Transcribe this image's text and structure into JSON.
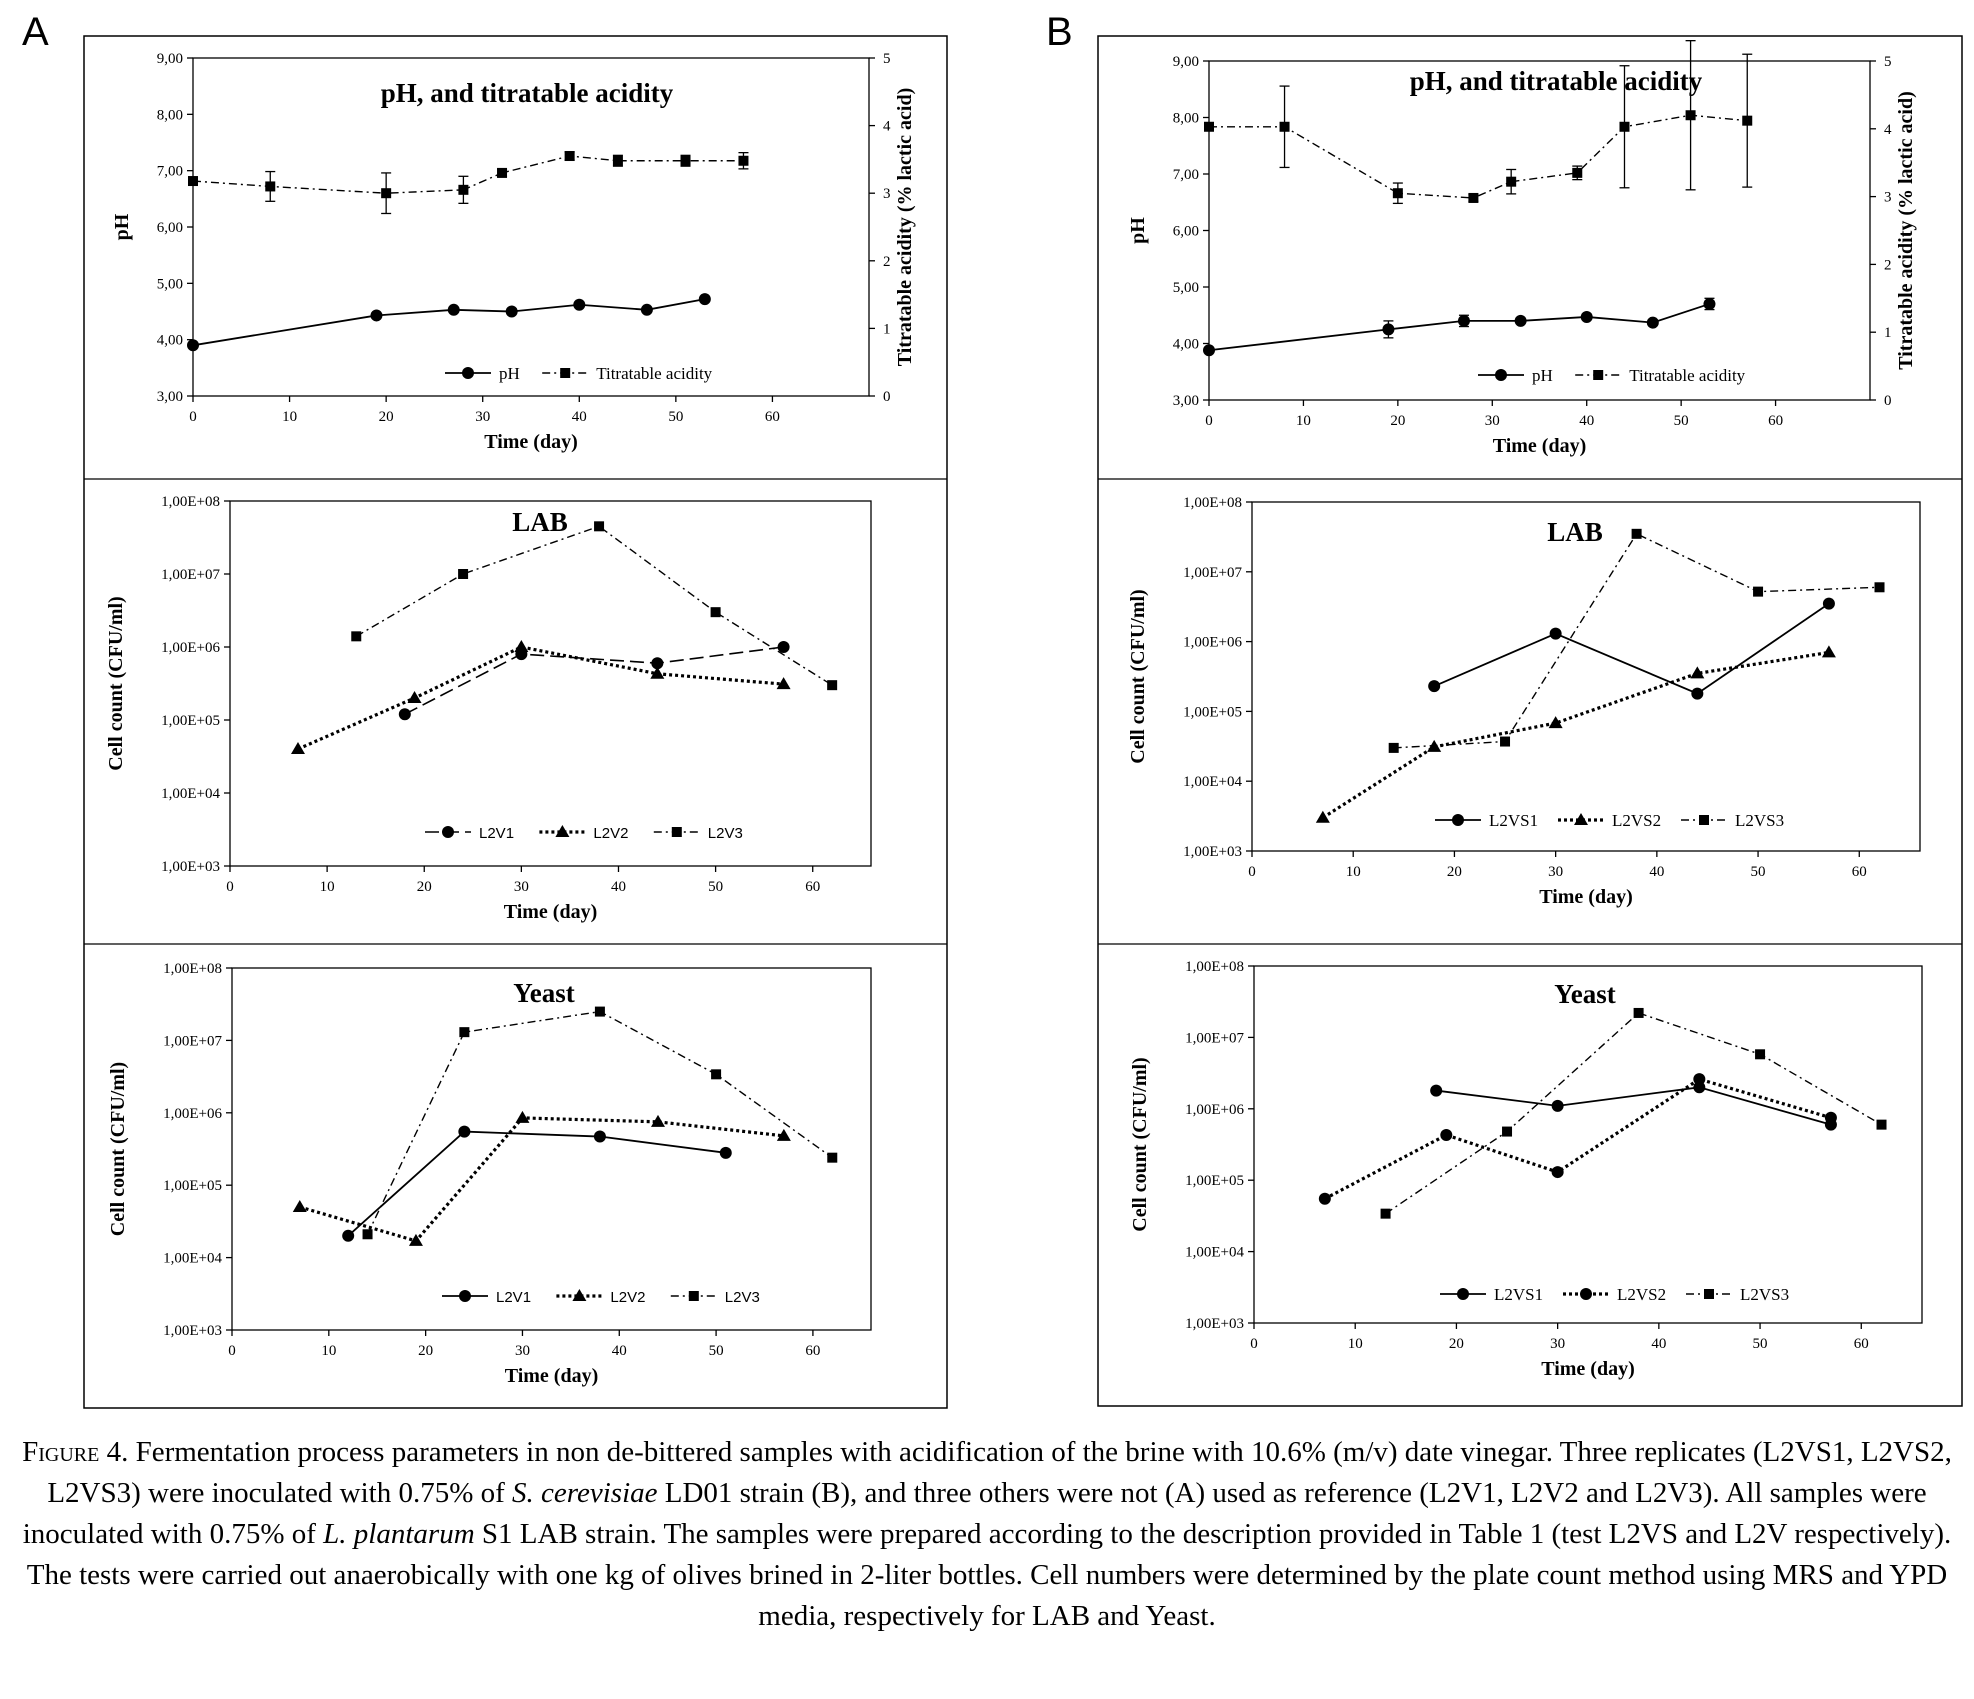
{
  "panels": [
    {
      "letter": "A",
      "charts": [
        0,
        1,
        2
      ]
    },
    {
      "letter": "B",
      "charts": [
        3,
        4,
        5
      ]
    }
  ],
  "caption": {
    "fig_label": "Figure 4.",
    "t1": " Fermentation process parameters in non de-bittered samples with acidification of the brine with 10.6% (m/v) date vinegar. Three replicates (L2VS1, L2VS2, L2VS3) were inoculated with 0.75% of ",
    "i1": "S. cerevisiae",
    "t2": " LD01 strain (B), and three others were not (A) used as reference (L2V1, L2V2 and L2V3). All samples were inoculated with 0.75% of ",
    "i2": "L. plantarum",
    "t3": " S1 LAB strain. The samples were prepared according to the description provided in Table 1 (test L2VS and L2V respectively). The tests were carried out anaerobically with one kg of olives brined in 2-liter bottles. Cell numbers were determined by the plate count method using MRS and YPD media, respectively for LAB and Yeast."
  },
  "chart_data": [
    {
      "type": "line",
      "panel": "A",
      "title": "pH, and titratable acidity",
      "xlabel": "Time (day)",
      "ylabel": "pH",
      "y2label": "Titratable acidity (% lactic acid)",
      "xlim": [
        0,
        70
      ],
      "xticks": [
        0,
        10,
        20,
        30,
        40,
        50,
        60
      ],
      "ylim": [
        3,
        9
      ],
      "yticks": [
        "3,00",
        "4,00",
        "5,00",
        "6,00",
        "7,00",
        "8,00",
        "9,00"
      ],
      "y2lim": [
        0,
        5
      ],
      "y2ticks": [
        "0",
        "1",
        "2",
        "3",
        "4",
        "5"
      ],
      "legend": "bottom-center",
      "series": [
        {
          "name": "pH",
          "axis": "left",
          "marker": "circle",
          "dash": "solid",
          "x": [
            0,
            19,
            27,
            33,
            40,
            47,
            53
          ],
          "y": [
            3.9,
            4.43,
            4.53,
            4.5,
            4.62,
            4.53,
            4.72
          ],
          "err": [
            0,
            0,
            0,
            0,
            0,
            0,
            0
          ]
        },
        {
          "name": "Titratable acidity",
          "axis": "right",
          "marker": "square",
          "dash": "dashdot",
          "x": [
            0,
            8,
            20,
            28,
            32,
            39,
            44,
            51,
            57
          ],
          "y": [
            3.18,
            3.1,
            3.0,
            3.05,
            3.3,
            3.55,
            3.48,
            3.48,
            3.48
          ],
          "err": [
            0,
            0.22,
            0.3,
            0.2,
            0.05,
            0.06,
            0.08,
            0.08,
            0.12
          ]
        }
      ]
    },
    {
      "type": "line",
      "panel": "A",
      "title": "LAB",
      "xlabel": "Time (day)",
      "ylabel": "Cell count (CFU/ml)",
      "log": true,
      "xlim": [
        0,
        66
      ],
      "xticks": [
        0,
        10,
        20,
        30,
        40,
        50,
        60
      ],
      "ylim": [
        1000,
        100000000
      ],
      "yticks": [
        "1,00E+03",
        "1,00E+04",
        "1,00E+05",
        "1,00E+06",
        "1,00E+07",
        "1,00E+08"
      ],
      "legend": "bottom-center",
      "series": [
        {
          "name": "L2V1",
          "marker": "circle",
          "dash": "longdash",
          "x": [
            18,
            30,
            44,
            57
          ],
          "y": [
            120000,
            800000,
            600000,
            1000000
          ]
        },
        {
          "name": "L2V2",
          "marker": "triangle",
          "dash": "dotted",
          "x": [
            7,
            19,
            30,
            44,
            57
          ],
          "y": [
            40000,
            200000,
            1000000,
            430000,
            310000
          ]
        },
        {
          "name": "L2V3",
          "marker": "square",
          "dash": "dashdot",
          "x": [
            13,
            24,
            38,
            50,
            62
          ],
          "y": [
            1400000,
            10000000,
            45000000,
            3000000,
            300000
          ]
        }
      ]
    },
    {
      "type": "line",
      "panel": "A",
      "title": "Yeast",
      "xlabel": "Time (day)",
      "ylabel": "Cell count (CFU/ml)",
      "log": true,
      "xlim": [
        0,
        66
      ],
      "xticks": [
        0,
        10,
        20,
        30,
        40,
        50,
        60
      ],
      "ylim": [
        1000,
        100000000
      ],
      "yticks": [
        "1,00E+03",
        "1,00E+04",
        "1,00E+05",
        "1,00E+06",
        "1,00E+07",
        "1,00E+08"
      ],
      "legend": "bottom-center",
      "series": [
        {
          "name": "L2V1",
          "marker": "circle",
          "dash": "solid",
          "x": [
            12,
            24,
            38,
            51
          ],
          "y": [
            20000,
            550000,
            470000,
            280000
          ]
        },
        {
          "name": "L2V2",
          "marker": "triangle",
          "dash": "dotted",
          "x": [
            7,
            19,
            30,
            44,
            57
          ],
          "y": [
            50000,
            17000,
            850000,
            750000,
            480000
          ]
        },
        {
          "name": "L2V3",
          "marker": "square",
          "dash": "dashdot",
          "x": [
            14,
            24,
            38,
            50,
            62
          ],
          "y": [
            21000,
            13000000,
            25000000,
            3400000,
            240000
          ]
        }
      ]
    },
    {
      "type": "line",
      "panel": "B",
      "title": "pH, and titratable acidity",
      "xlabel": "Time (day)",
      "ylabel": "pH",
      "y2label": "Titratable acidity (% lactic acid)",
      "xlim": [
        0,
        70
      ],
      "xticks": [
        0,
        10,
        20,
        30,
        40,
        50,
        60
      ],
      "ylim": [
        3,
        9
      ],
      "yticks": [
        "3,00",
        "4,00",
        "5,00",
        "6,00",
        "7,00",
        "8,00",
        "9,00"
      ],
      "y2lim": [
        0,
        5
      ],
      "y2ticks": [
        "0",
        "1",
        "2",
        "3",
        "4",
        "5"
      ],
      "legend": "bottom-center",
      "series": [
        {
          "name": "pH",
          "axis": "left",
          "marker": "circle",
          "dash": "solid",
          "x": [
            0,
            19,
            27,
            33,
            40,
            47,
            53
          ],
          "y": [
            3.88,
            4.25,
            4.4,
            4.4,
            4.47,
            4.37,
            4.7
          ],
          "err": [
            0,
            0.15,
            0.1,
            0,
            0.03,
            0,
            0.1
          ]
        },
        {
          "name": "Titratable acidity",
          "axis": "right",
          "marker": "square",
          "dash": "dashdot",
          "x": [
            0,
            8,
            20,
            28,
            32,
            39,
            44,
            51,
            57
          ],
          "y": [
            4.03,
            4.03,
            3.05,
            2.98,
            3.22,
            3.35,
            4.03,
            4.2,
            4.12
          ],
          "err": [
            0,
            0.6,
            0.15,
            0.05,
            0.18,
            0.1,
            0.9,
            1.1,
            0.98
          ]
        }
      ]
    },
    {
      "type": "line",
      "panel": "B",
      "title": "LAB",
      "xlabel": "Time (day)",
      "ylabel": "Cell count (CFU/ml)",
      "log": true,
      "xlim": [
        0,
        66
      ],
      "xticks": [
        0,
        10,
        20,
        30,
        40,
        50,
        60
      ],
      "ylim": [
        1000,
        100000000
      ],
      "yticks": [
        "1,00E+03",
        "1,00E+04",
        "1,00E+05",
        "1,00E+06",
        "1,00E+07",
        "1,00E+08"
      ],
      "legend": "bottom-center",
      "series": [
        {
          "name": "L2VS1",
          "marker": "circle",
          "dash": "solid",
          "x": [
            18,
            30,
            44,
            57
          ],
          "y": [
            230000,
            1300000,
            180000,
            3500000
          ]
        },
        {
          "name": "L2VS2",
          "marker": "triangle",
          "dash": "dotted",
          "x": [
            7,
            18,
            30,
            44,
            57
          ],
          "y": [
            3000,
            31000,
            68000,
            350000,
            700000
          ]
        },
        {
          "name": "L2VS3",
          "marker": "square",
          "dash": "dashdot",
          "x": [
            14,
            25,
            38,
            50,
            62
          ],
          "y": [
            30000,
            37000,
            35000000,
            5200000,
            6000000
          ]
        }
      ]
    },
    {
      "type": "line",
      "panel": "B",
      "title": "Yeast",
      "xlabel": "Time (day)",
      "ylabel": "Cell count (CFU/ml)",
      "log": true,
      "xlim": [
        0,
        66
      ],
      "xticks": [
        0,
        10,
        20,
        30,
        40,
        50,
        60
      ],
      "ylim": [
        1000,
        100000000
      ],
      "yticks": [
        "1,00E+03",
        "1,00E+04",
        "1,00E+05",
        "1,00E+06",
        "1,00E+07",
        "1,00E+08"
      ],
      "legend": "bottom-center",
      "series": [
        {
          "name": "L2VS1",
          "marker": "circle",
          "dash": "solid",
          "x": [
            18,
            30,
            44,
            57
          ],
          "y": [
            1800000,
            1100000,
            2000000,
            600000
          ]
        },
        {
          "name": "L2VS2",
          "marker": "circle",
          "dash": "dotted",
          "x": [
            7,
            19,
            30,
            44,
            57
          ],
          "y": [
            55000,
            430000,
            130000,
            2600000,
            750000
          ]
        },
        {
          "name": "L2VS3",
          "marker": "square",
          "dash": "dashdot",
          "x": [
            13,
            25,
            38,
            50,
            62
          ],
          "y": [
            34000,
            480000,
            22000000,
            5800000,
            600000
          ]
        }
      ]
    }
  ]
}
